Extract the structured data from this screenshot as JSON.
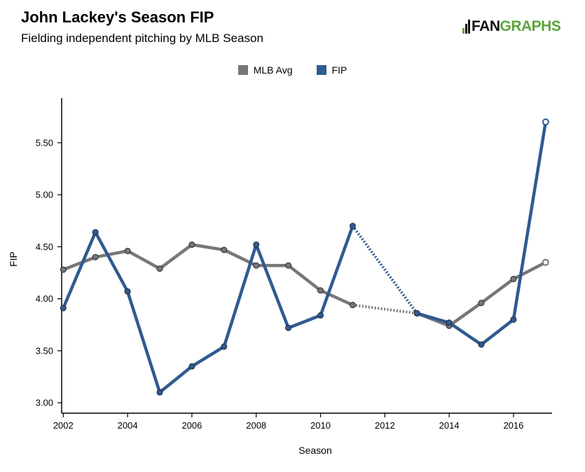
{
  "title": "John Lackey's Season FIP",
  "subtitle": "Fielding independent pitching by MLB Season",
  "logo": {
    "part1": "FAN",
    "part2": "GRAPHS"
  },
  "legend": [
    {
      "label": "MLB Avg",
      "color": "#777777"
    },
    {
      "label": "FIP",
      "color": "#2f5b8f"
    }
  ],
  "chart_data": {
    "type": "line",
    "title": "John Lackey's Season FIP",
    "subtitle": "Fielding independent pitching by MLB Season",
    "xlabel": "Season",
    "ylabel": "FIP",
    "xlim": [
      2001.95,
      2017.2
    ],
    "ylim": [
      2.9,
      5.93
    ],
    "x_ticks": [
      2002,
      2004,
      2006,
      2008,
      2010,
      2012,
      2014,
      2016
    ],
    "x_tick_labels": [
      "2002",
      "2004",
      "2006",
      "2008",
      "2010",
      "2012",
      "2014",
      "2016"
    ],
    "y_ticks": [
      3.0,
      3.5,
      4.0,
      4.5,
      5.0,
      5.5
    ],
    "y_tick_labels": [
      "3.00",
      "3.50",
      "4.00",
      "4.50",
      "5.00",
      "5.50"
    ],
    "grid": false,
    "legend_position": "top-center",
    "gap_note": "2012 missing season drawn as dotted connector",
    "series": [
      {
        "name": "MLB Avg",
        "color": "#777777",
        "x": [
          2002,
          2003,
          2004,
          2005,
          2006,
          2007,
          2008,
          2009,
          2010,
          2011,
          2013,
          2014,
          2015,
          2016,
          2017
        ],
        "values": [
          4.28,
          4.4,
          4.46,
          4.29,
          4.52,
          4.47,
          4.32,
          4.32,
          4.08,
          3.94,
          3.86,
          3.74,
          3.96,
          4.19,
          4.35
        ]
      },
      {
        "name": "FIP",
        "color": "#2f5b8f",
        "x": [
          2002,
          2003,
          2004,
          2005,
          2006,
          2007,
          2008,
          2009,
          2010,
          2011,
          2013,
          2014,
          2015,
          2016,
          2017
        ],
        "values": [
          3.91,
          4.64,
          4.07,
          3.1,
          3.35,
          3.54,
          4.52,
          3.72,
          3.84,
          4.7,
          3.86,
          3.77,
          3.56,
          3.8,
          5.7
        ]
      }
    ]
  }
}
